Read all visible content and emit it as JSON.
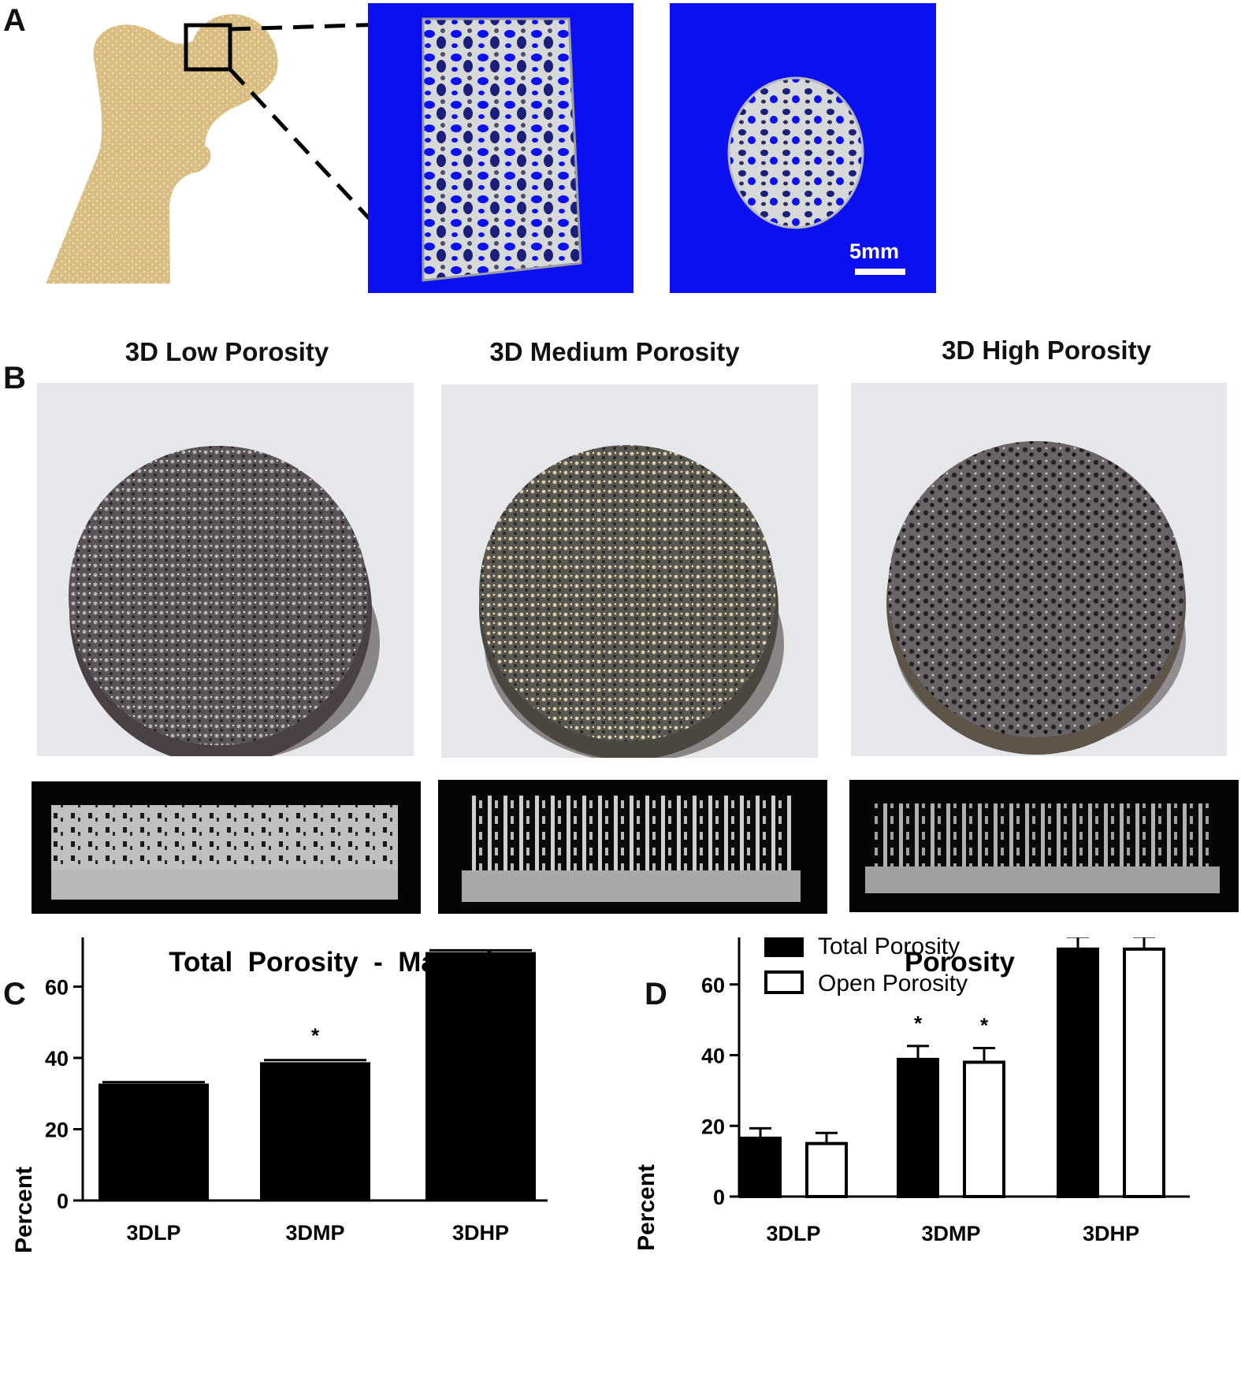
{
  "panels": {
    "a_label": "A",
    "b_label": "B",
    "c_label": "C",
    "d_label": "D"
  },
  "panel_a": {
    "scale_bar_label": "5mm",
    "background_color": "#0a10f0",
    "bone_color": "#d9bd82"
  },
  "panel_b": {
    "titles": [
      "3D Low Porosity",
      "3D Medium Porosity",
      "3D High Porosity"
    ]
  },
  "chart_data": [
    {
      "type": "bar",
      "title": "Total  Porosity  -  Manual",
      "ylabel": "Percent",
      "xlabel": "",
      "categories": [
        "3DLP",
        "3DMP",
        "3DHP"
      ],
      "values": [
        32.8,
        38.8,
        69.7
      ],
      "errors": [
        0.4,
        0.6,
        0.5
      ],
      "annotations": [
        "",
        "*",
        "^\n*"
      ],
      "ylim": [
        0,
        80
      ],
      "yticks": [
        0,
        20,
        40,
        60,
        80
      ],
      "colors": [
        "#000000"
      ]
    },
    {
      "type": "bar",
      "title": "Porosity",
      "ylabel": "Percent",
      "xlabel": "",
      "categories": [
        "3DLP",
        "3DMP",
        "3DHP"
      ],
      "series": [
        {
          "name": "Total Porosity",
          "values": [
            16.5,
            38.8,
            70.0
          ],
          "errors": [
            2.8,
            3.8,
            3.5
          ],
          "annotations": [
            "",
            "*",
            "^\n*"
          ],
          "color": "#000000"
        },
        {
          "name": "Open Porosity",
          "values": [
            15.0,
            38.0,
            70.0
          ],
          "errors": [
            3.0,
            4.0,
            3.5
          ],
          "annotations": [
            "",
            "*",
            "^\n*"
          ],
          "color": "#ffffff"
        }
      ],
      "ylim": [
        0,
        80
      ],
      "yticks": [
        0,
        20,
        40,
        60,
        80
      ],
      "legend": "top-left"
    }
  ]
}
